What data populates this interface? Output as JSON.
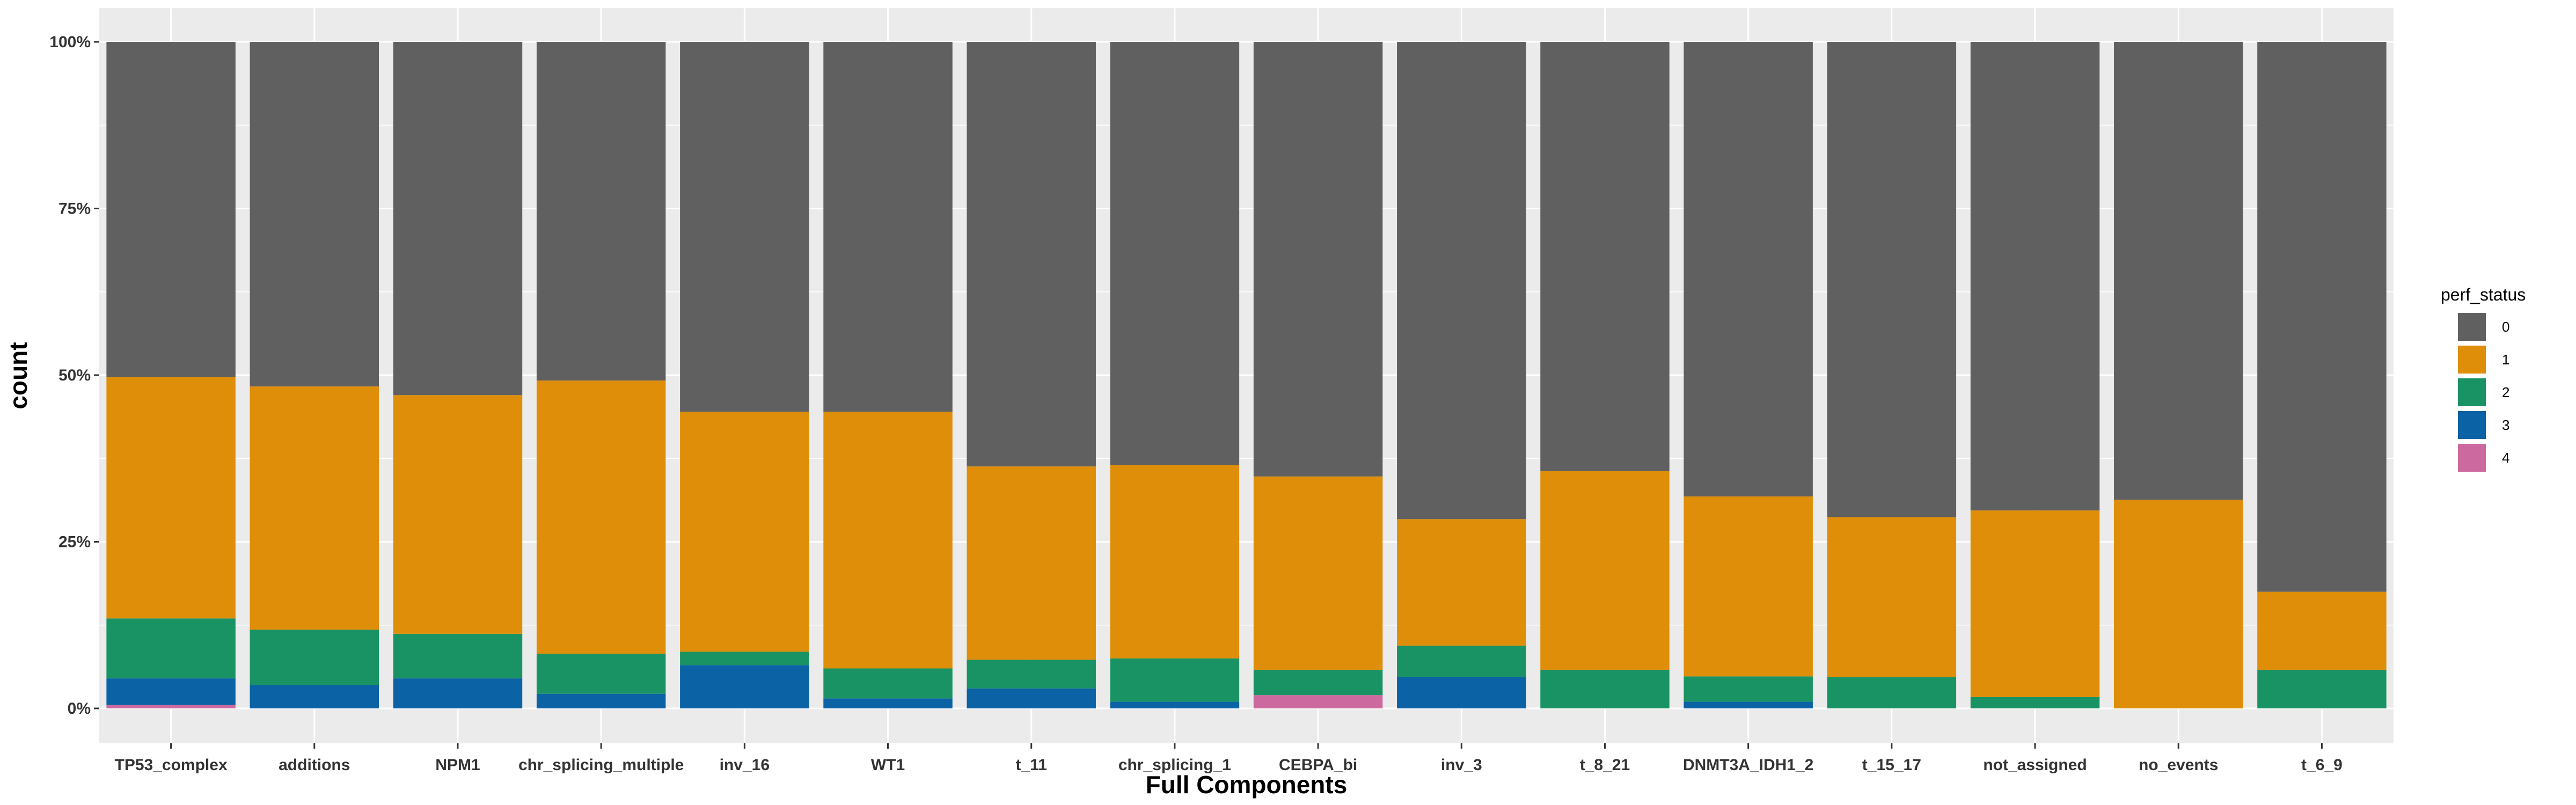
{
  "chart_data": {
    "type": "bar",
    "stacked": true,
    "position": "fill",
    "xlabel": "Full Components",
    "ylabel": "count",
    "ylim": [
      0,
      1
    ],
    "y_ticks": [
      "0%",
      "25%",
      "50%",
      "75%",
      "100%"
    ],
    "y_tick_values": [
      0,
      0.25,
      0.5,
      0.75,
      1.0
    ],
    "grid": true,
    "legend": {
      "title": "perf_status",
      "placement": "right"
    },
    "categories": [
      "TP53_complex",
      "additions",
      "NPM1",
      "chr_splicing_multiple",
      "inv_16",
      "WT1",
      "t_11",
      "chr_splicing_1",
      "CEBPA_bi",
      "inv_3",
      "t_8_21",
      "DNMT3A_IDH1_2",
      "t_15_17",
      "not_assigned",
      "no_events",
      "t_6_9"
    ],
    "series": [
      {
        "name": "4",
        "color": "#CC6A9F",
        "values": [
          0.005,
          0.0,
          0.0,
          0.0,
          0.0,
          0.0,
          0.0,
          0.0,
          0.02,
          0.0,
          0.0,
          0.0,
          0.0,
          0.0,
          0.0,
          0.0
        ]
      },
      {
        "name": "3",
        "color": "#0B62A4",
        "values": [
          0.04,
          0.035,
          0.045,
          0.022,
          0.065,
          0.015,
          0.03,
          0.01,
          0.0,
          0.047,
          0.0,
          0.01,
          0.0,
          0.0,
          0.0,
          0.0
        ]
      },
      {
        "name": "2",
        "color": "#1A9364",
        "values": [
          0.09,
          0.083,
          0.067,
          0.06,
          0.02,
          0.045,
          0.043,
          0.065,
          0.038,
          0.047,
          0.058,
          0.038,
          0.047,
          0.017,
          0.0,
          0.058
        ]
      },
      {
        "name": "1",
        "color": "#DE8E08",
        "values": [
          0.362,
          0.365,
          0.358,
          0.41,
          0.36,
          0.385,
          0.29,
          0.29,
          0.29,
          0.19,
          0.298,
          0.27,
          0.24,
          0.28,
          0.313,
          0.117
        ]
      },
      {
        "name": "0",
        "color": "#606060",
        "values": [
          0.503,
          0.517,
          0.53,
          0.508,
          0.555,
          0.555,
          0.637,
          0.635,
          0.652,
          0.716,
          0.644,
          0.682,
          0.713,
          0.703,
          0.687,
          0.825
        ]
      }
    ],
    "legend_order": [
      "0",
      "1",
      "2",
      "3",
      "4"
    ]
  },
  "colors": {
    "panel_background": "#EBEBEB",
    "grid_major": "#FFFFFF",
    "grid_minor": "#F5F5F5"
  }
}
